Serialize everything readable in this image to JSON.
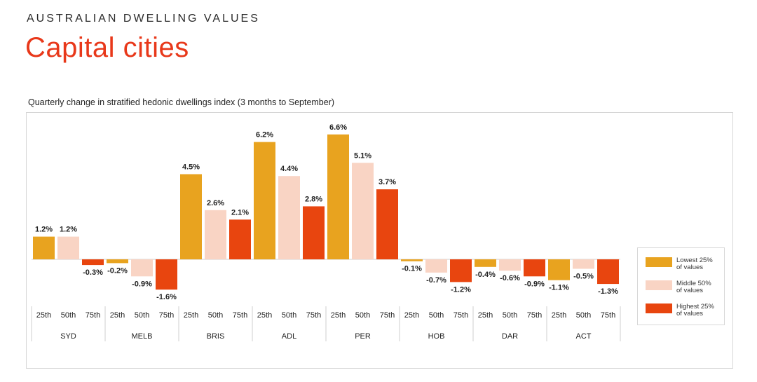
{
  "header": {
    "eyebrow": "AUSTRALIAN DWELLING VALUES",
    "title": "Capital cities",
    "subtitle": "Quarterly change in stratified hedonic dwellings index (3 months to September)"
  },
  "colors": {
    "title": "#e8381a",
    "lowest_25": "#e8a31f",
    "middle_50": "#f9d4c4",
    "highest_25": "#e8450f"
  },
  "chart_data": {
    "type": "bar",
    "title": "Quarterly change in stratified hedonic dwellings index (3 months to September)",
    "groups": [
      "SYD",
      "MELB",
      "BRIS",
      "ADL",
      "PER",
      "HOB",
      "DAR",
      "ACT"
    ],
    "subcategories": [
      "25th",
      "50th",
      "75th"
    ],
    "series": [
      {
        "name": "Lowest 25% of values",
        "color": "#e8a31f",
        "values": [
          1.2,
          -0.2,
          4.5,
          6.2,
          6.6,
          -0.1,
          -0.4,
          -1.1
        ]
      },
      {
        "name": "Middle 50% of values",
        "color": "#f9d4c4",
        "values": [
          1.2,
          -0.9,
          2.6,
          4.4,
          5.1,
          -0.7,
          -0.6,
          -0.5
        ]
      },
      {
        "name": "Highest 25% of values",
        "color": "#e8450f",
        "values": [
          -0.3,
          -1.6,
          2.1,
          2.8,
          3.7,
          -1.2,
          -0.9,
          -1.3
        ]
      }
    ],
    "data_labels": [
      [
        "1.2%",
        "-0.2%",
        "4.5%",
        "6.2%",
        "6.6%",
        "-0.1%",
        "-0.4%",
        "-1.1%"
      ],
      [
        "1.2%",
        "-0.9%",
        "2.6%",
        "4.4%",
        "5.1%",
        "-0.7%",
        "-0.6%",
        "-0.5%"
      ],
      [
        "-0.3%",
        "-1.6%",
        "2.1%",
        "2.8%",
        "3.7%",
        "-1.2%",
        "-0.9%",
        "-1.3%"
      ]
    ],
    "xlabel": "",
    "ylabel": "",
    "grid": false,
    "legend_position": "right"
  },
  "legend": {
    "items": [
      {
        "label_line1": "Lowest 25%",
        "label_line2": "of values"
      },
      {
        "label_line1": "Middle 50%",
        "label_line2": "of values"
      },
      {
        "label_line1": "Highest 25%",
        "label_line2": "of values"
      }
    ]
  }
}
